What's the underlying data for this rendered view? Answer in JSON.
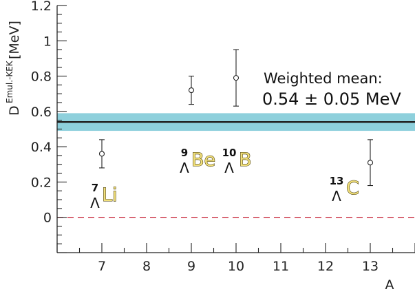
{
  "chart_data": {
    "type": "scatter",
    "xlabel": "A",
    "ylabel": "D",
    "ylabel_superscript": "Emul.-KEK",
    "ylabel_unit": "[MeV]",
    "xlim": [
      6,
      14
    ],
    "ylim": [
      -0.2,
      1.2
    ],
    "x_ticks": [
      7,
      8,
      9,
      10,
      11,
      12,
      13
    ],
    "y_ticks": [
      0,
      0.2,
      0.4,
      0.6,
      0.8,
      1,
      1.2
    ],
    "y_tick_labels": [
      "0",
      "0.2",
      "0.4",
      "0.6",
      "0.8",
      "1",
      "1.2"
    ],
    "points": [
      {
        "x": 7,
        "y": 0.36,
        "err_low": 0.08,
        "err_high": 0.08
      },
      {
        "x": 9,
        "y": 0.72,
        "err_low": 0.08,
        "err_high": 0.08
      },
      {
        "x": 10,
        "y": 0.79,
        "err_low": 0.16,
        "err_high": 0.16
      },
      {
        "x": 13,
        "y": 0.31,
        "err_low": 0.13,
        "err_high": 0.13
      }
    ],
    "mean": {
      "value": 0.54,
      "error": 0.05,
      "band_color": "#8ed0dc",
      "line_color": "#222222"
    },
    "zero_line_color": "#c8283c",
    "annotation_line1": "Weighted mean:",
    "annotation_line2": "0.54 ± 0.05 MeV",
    "hypernuclei": [
      {
        "mass": "7",
        "symbol": "Li",
        "lambda": "Λ",
        "x": 7,
        "y": 0.1
      },
      {
        "mass": "9",
        "symbol": "Be",
        "lambda": "Λ",
        "x": 9,
        "y": 0.3
      },
      {
        "mass": "10",
        "symbol": "B",
        "lambda": "Λ",
        "x": 10,
        "y": 0.3
      },
      {
        "mass": "13",
        "symbol": "C",
        "lambda": "Λ",
        "x": 12.4,
        "y": 0.14
      }
    ]
  }
}
